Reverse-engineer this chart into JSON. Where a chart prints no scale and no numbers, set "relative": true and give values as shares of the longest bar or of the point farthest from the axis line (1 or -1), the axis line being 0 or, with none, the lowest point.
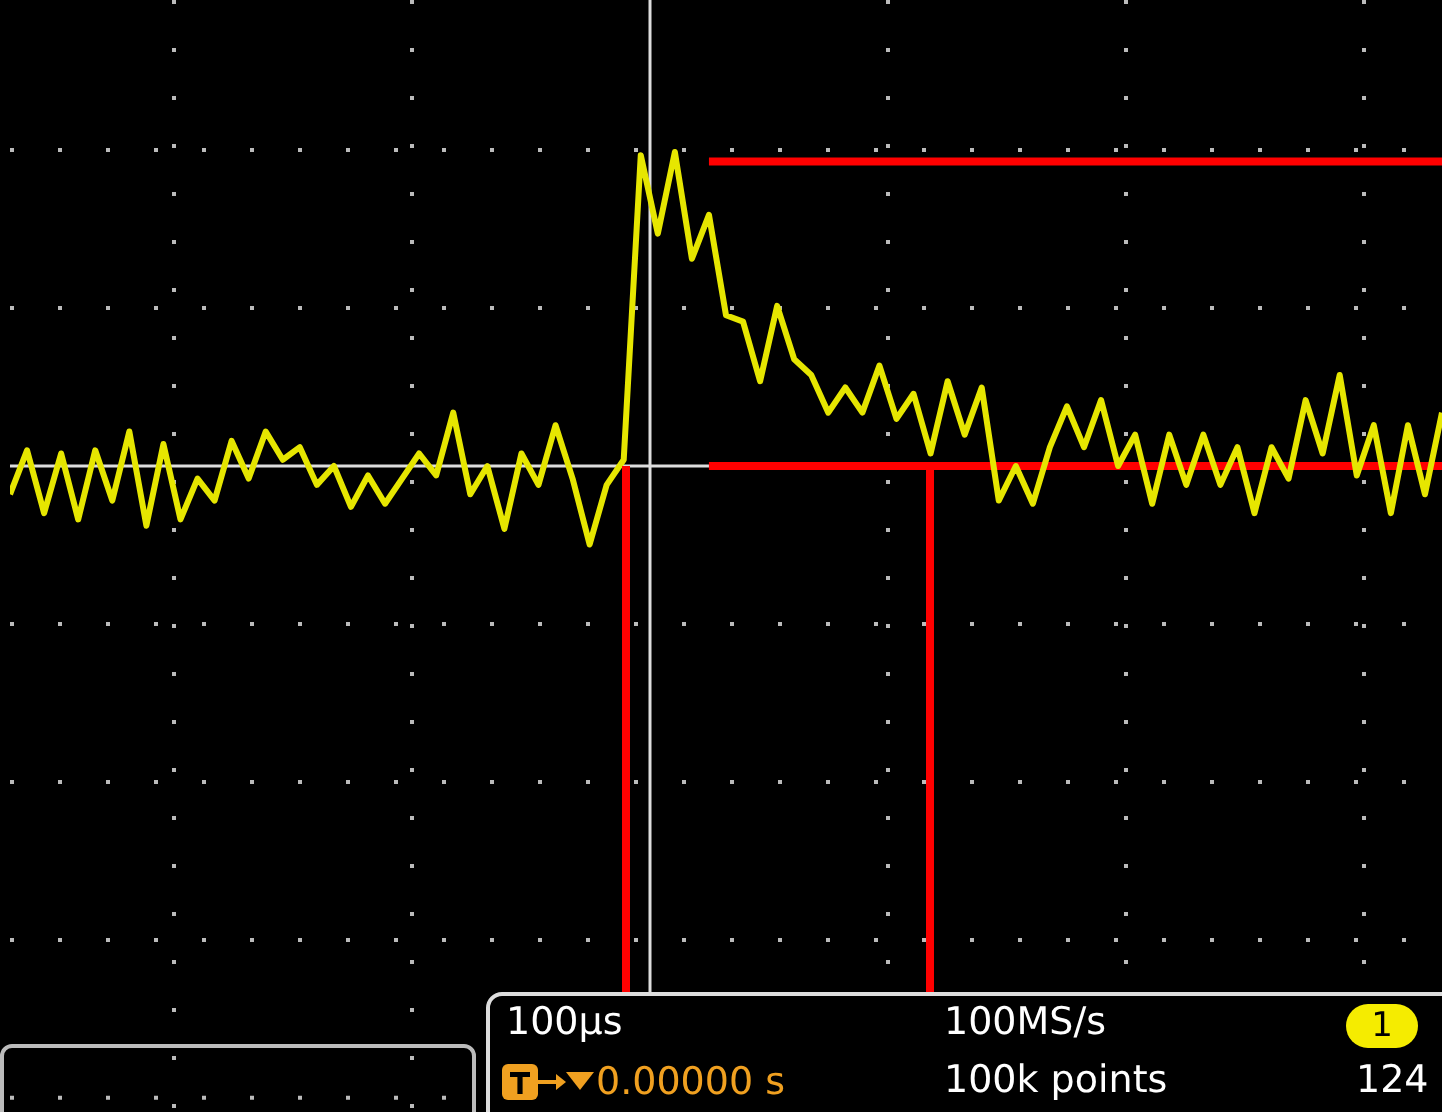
{
  "chart_data": {
    "type": "line",
    "relative": true,
    "categories": [
      null,
      null,
      null,
      null,
      null,
      null,
      null,
      null,
      null,
      null,
      null,
      null,
      null,
      null,
      null,
      null,
      null,
      null,
      null,
      null,
      null,
      null,
      null,
      null,
      null,
      null,
      null,
      null,
      null,
      null,
      null,
      null,
      null,
      null,
      null,
      null,
      null,
      null,
      null,
      null,
      null,
      null,
      null,
      null,
      null,
      null,
      null,
      null,
      null,
      null,
      null,
      null,
      null,
      null,
      null,
      null,
      null,
      null,
      null,
      null,
      null,
      null,
      null,
      null,
      null,
      null,
      null,
      null,
      null,
      null,
      null,
      null,
      null,
      null,
      null,
      null,
      null,
      null,
      null,
      null,
      null,
      null,
      null,
      null,
      null
    ],
    "series": [
      {
        "color": "#e6e600",
        "values": [
          -0.09,
          0.05,
          -0.15,
          0.04,
          -0.17,
          0.05,
          -0.11,
          0.11,
          -0.19,
          0.07,
          -0.17,
          -0.04,
          -0.11,
          0.08,
          -0.04,
          0.11,
          0.02,
          0.06,
          -0.06,
          0,
          -0.13,
          -0.03,
          -0.12,
          -0.04,
          0.04,
          -0.03,
          0.17,
          -0.09,
          0,
          -0.2,
          0.04,
          -0.06,
          0.13,
          -0.04,
          -0.25,
          -0.06,
          0.02,
          0.99,
          0.74,
          1,
          0.66,
          0.8,
          0.48,
          0.46,
          0.27,
          0.51,
          0.34,
          0.29,
          0.17,
          0.25,
          0.17,
          0.32,
          0.15,
          0.23,
          0.04,
          0.27,
          0.1,
          0.25,
          -0.11,
          0,
          -0.12,
          0.06,
          0.19,
          0.06,
          0.21,
          0,
          0.1,
          -0.12,
          0.1,
          -0.06,
          0.1,
          -0.06,
          0.06,
          -0.15,
          0.06,
          -0.04,
          0.21,
          0.04,
          0.29,
          -0.03,
          0.13,
          -0.15,
          0.13,
          -0.09,
          0.17
        ]
      }
    ],
    "grid": true,
    "marker": "none",
    "line_style": "solid",
    "ref_lines": [
      {
        "axis": "y",
        "value": 0.97,
        "color": "#ff0000"
      },
      {
        "axis": "y",
        "value": 0,
        "color": "#ff0000"
      }
    ],
    "annotations": [
      "100µs",
      "0.00000 s",
      "100MS/s",
      "100k points",
      "1",
      "124"
    ]
  }
}
